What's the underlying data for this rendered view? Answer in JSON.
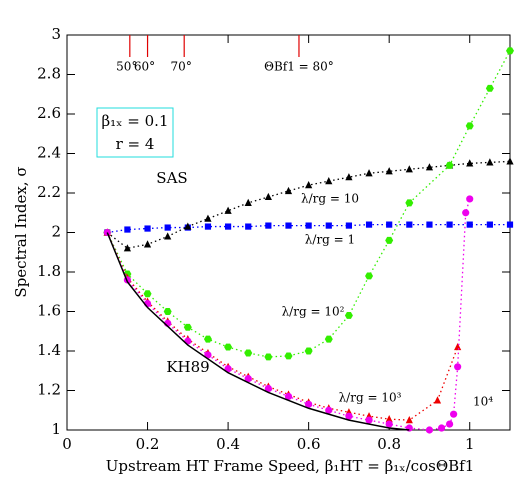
{
  "chart_data": {
    "type": "line",
    "xlabel": "Upstream HT Frame Speed, β₁HT = β₁ₓ/cosΘBf1",
    "ylabel": "Spectral Index, σ",
    "xlim": [
      0,
      1.1
    ],
    "ylim": [
      1,
      3
    ],
    "xticks": [
      0,
      0.2,
      0.4,
      0.6,
      0.8,
      1
    ],
    "yticks": [
      1,
      1.2,
      1.4,
      1.6,
      1.8,
      2,
      2.2,
      2.4,
      2.6,
      2.8,
      3
    ],
    "annotations": [
      "β₁ₓ = 0.1",
      "r = 4",
      "SAS",
      "KH89"
    ],
    "top_markers": {
      "color": "#e00000",
      "x": [
        0.156,
        0.2,
        0.291,
        0.576
      ],
      "labels": [
        "50°",
        "60°",
        "70°",
        "ΘBf1 = 80°"
      ]
    },
    "series": [
      {
        "name": "λ/rg = 1",
        "color": "#0000ff",
        "marker": "square",
        "x": [
          0.1,
          0.15,
          0.2,
          0.25,
          0.3,
          0.35,
          0.4,
          0.45,
          0.5,
          0.55,
          0.6,
          0.65,
          0.7,
          0.75,
          0.8,
          0.85,
          0.9,
          0.95,
          1.0,
          1.05,
          1.1
        ],
        "values": [
          2.0,
          2.015,
          2.02,
          2.025,
          2.025,
          2.03,
          2.03,
          2.03,
          2.035,
          2.035,
          2.035,
          2.035,
          2.035,
          2.04,
          2.04,
          2.04,
          2.04,
          2.04,
          2.04,
          2.04,
          2.04
        ]
      },
      {
        "name": "λ/rg = 10",
        "color": "#000000",
        "marker": "triangle",
        "x": [
          0.1,
          0.15,
          0.2,
          0.25,
          0.3,
          0.35,
          0.4,
          0.45,
          0.5,
          0.55,
          0.6,
          0.65,
          0.7,
          0.75,
          0.8,
          0.85,
          0.9,
          0.95,
          1.0,
          1.05,
          1.1
        ],
        "values": [
          2.0,
          1.92,
          1.94,
          1.98,
          2.03,
          2.07,
          2.11,
          2.15,
          2.18,
          2.21,
          2.24,
          2.26,
          2.28,
          2.3,
          2.31,
          2.32,
          2.33,
          2.34,
          2.35,
          2.355,
          2.36
        ]
      },
      {
        "name": "λ/rg = 10²",
        "color": "#33ee00",
        "marker": "hexagon",
        "x": [
          0.1,
          0.15,
          0.2,
          0.25,
          0.3,
          0.35,
          0.4,
          0.45,
          0.5,
          0.55,
          0.6,
          0.65,
          0.7,
          0.75,
          0.8,
          0.85,
          0.95,
          1.0,
          1.05,
          1.1
        ],
        "values": [
          2.0,
          1.79,
          1.69,
          1.6,
          1.52,
          1.46,
          1.42,
          1.39,
          1.37,
          1.375,
          1.4,
          1.46,
          1.58,
          1.78,
          1.96,
          2.15,
          2.34,
          2.54,
          2.73,
          2.92
        ]
      },
      {
        "name": "λ/rg = 10³",
        "color": "#ee0000",
        "marker": "triangle",
        "x": [
          0.1,
          0.15,
          0.2,
          0.25,
          0.3,
          0.35,
          0.4,
          0.45,
          0.5,
          0.55,
          0.6,
          0.65,
          0.7,
          0.75,
          0.8,
          0.85,
          0.92,
          0.97
        ],
        "values": [
          2.0,
          1.77,
          1.65,
          1.55,
          1.46,
          1.39,
          1.32,
          1.27,
          1.22,
          1.18,
          1.14,
          1.11,
          1.09,
          1.07,
          1.055,
          1.05,
          1.15,
          1.42
        ]
      },
      {
        "name": "10⁴",
        "color": "#ee00ee",
        "marker": "circle",
        "x": [
          0.1,
          0.15,
          0.2,
          0.25,
          0.3,
          0.35,
          0.4,
          0.45,
          0.5,
          0.55,
          0.6,
          0.65,
          0.7,
          0.75,
          0.8,
          0.85,
          0.9,
          0.93,
          0.95,
          0.96,
          0.97,
          0.99,
          1.0
        ],
        "values": [
          2.0,
          1.76,
          1.64,
          1.54,
          1.45,
          1.38,
          1.31,
          1.26,
          1.21,
          1.17,
          1.13,
          1.1,
          1.07,
          1.05,
          1.03,
          1.01,
          1.0,
          1.01,
          1.03,
          1.08,
          1.32,
          2.1,
          2.17
        ]
      },
      {
        "name": "KH89",
        "color": "#000000",
        "marker": "none",
        "x": [
          0.1,
          0.15,
          0.2,
          0.3,
          0.4,
          0.5,
          0.6,
          0.7,
          0.8,
          0.85
        ],
        "values": [
          2.0,
          1.75,
          1.62,
          1.43,
          1.29,
          1.19,
          1.11,
          1.05,
          1.01,
          1.0
        ]
      }
    ]
  }
}
